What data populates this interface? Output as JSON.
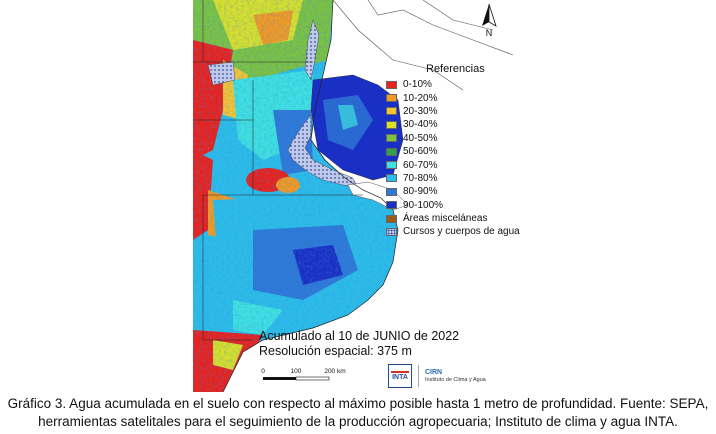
{
  "legend": {
    "title": "Referencias",
    "items": [
      {
        "label": "0-10%",
        "color": "#e8211c"
      },
      {
        "label": "10-20%",
        "color": "#f29a22"
      },
      {
        "label": "20-30%",
        "color": "#f5c431"
      },
      {
        "label": "30-40%",
        "color": "#d8e02a"
      },
      {
        "label": "40-50%",
        "color": "#7cc241"
      },
      {
        "label": "50-60%",
        "color": "#33a047"
      },
      {
        "label": "60-70%",
        "color": "#3fe0e0"
      },
      {
        "label": "70-80%",
        "color": "#2bbde8"
      },
      {
        "label": "80-90%",
        "color": "#2e78d6"
      },
      {
        "label": "90-100%",
        "color": "#1a2fc4"
      },
      {
        "label": "Áreas misceláneas",
        "color": "#9a5a1a"
      },
      {
        "label": "Cursos y cuerpos de agua",
        "color": "#b9c4e6"
      }
    ]
  },
  "north_arrow": {
    "label": "N",
    "icon": "north-arrow-icon"
  },
  "map_text": {
    "date": "Acumulado al 10 de JUNIO de 2022",
    "resolution": "Resolución espacial: 375 m"
  },
  "scale_bar": {
    "ticks": [
      "0",
      "100",
      "200 km"
    ]
  },
  "logos": {
    "inta": "INTA",
    "cirn": "CIRN",
    "institute": "Instituto de Clima y Agua"
  },
  "caption": {
    "line1": "Gráfico 3. Agua acumulada en el suelo con respecto al máximo posible hasta 1 metro de profundidad. Fuente: SEPA,",
    "line2": "herramientas satelitales para el seguimiento de la producción agropecuaria; Instituto de clima y agua INTA."
  }
}
